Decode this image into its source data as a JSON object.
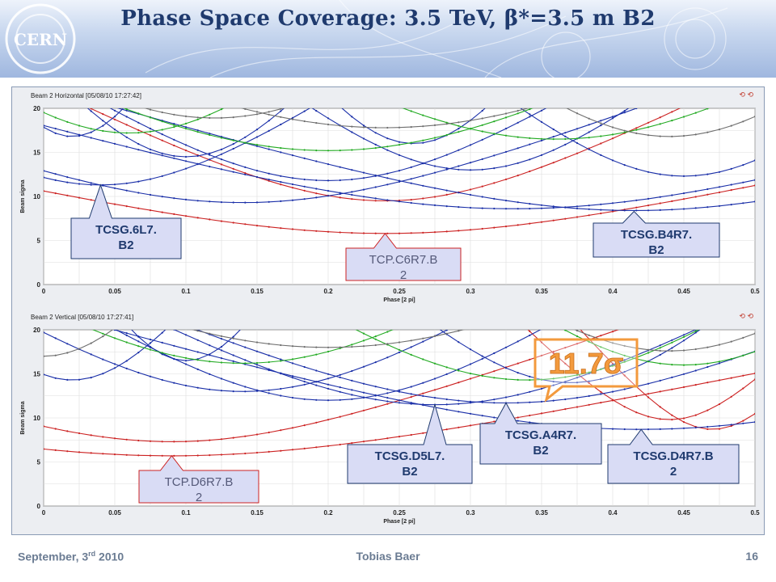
{
  "header": {
    "title": "Phase Space Coverage: 3.5 TeV, β*=3.5 m B2",
    "logo_text": "CERN"
  },
  "footer": {
    "date_prefix": "September, 3",
    "date_sup": "rd",
    "date_suffix": " 2010",
    "author": "Tobias Baer",
    "page": "16"
  },
  "highlight_label": "11.7σ",
  "colors": {
    "red": "#cc2222",
    "blue": "#1a2fa8",
    "green": "#22aa22",
    "gray": "#6e6e6e",
    "callout_fill": "#d9dcf5",
    "highlight": "#f39a3d"
  },
  "chart_data": [
    {
      "type": "line",
      "title": "Beam 2 Horizontal  [05/08/10 17:27:42]",
      "xlabel": "Phase [2 pi]",
      "ylabel": "Beam sigma",
      "xlim": [
        0,
        0.5
      ],
      "ylim": [
        0,
        20
      ],
      "xticks": [
        "0",
        "0.05",
        "0.1",
        "0.15",
        "0.2",
        "0.25",
        "0.3",
        "0.35",
        "0.4",
        "0.45",
        "0.5"
      ],
      "yticks": [
        "0",
        "5",
        "10",
        "15",
        "20"
      ],
      "grid": true,
      "annotations": [
        {
          "text_lines": [
            "TCSG.6L7.",
            "B2"
          ],
          "color": "blue",
          "x": 0.04,
          "y": 11.3
        },
        {
          "text_lines": [
            "TCP.C6R7.B",
            "2"
          ],
          "color": "red",
          "x": 0.24,
          "y": 5.8
        },
        {
          "text_lines": [
            "TCSG.B4R7.",
            "B2"
          ],
          "color": "blue",
          "x": 0.415,
          "y": 8.3
        }
      ],
      "curves": [
        {
          "color": "red",
          "center": 0.24,
          "min": 5.8,
          "width": 0.28
        },
        {
          "color": "red",
          "center": 0.24,
          "min": 9.5,
          "width": 0.2
        },
        {
          "color": "red",
          "center": -0.05,
          "min": 19,
          "width": 0.04
        },
        {
          "color": "blue",
          "center": 0.04,
          "min": 11.3,
          "width": 0.18
        },
        {
          "color": "blue",
          "center": 0.14,
          "min": 9.3,
          "width": 0.26
        },
        {
          "color": "blue",
          "center": 0.33,
          "min": 8.6,
          "width": 0.32
        },
        {
          "color": "blue",
          "center": 0.415,
          "min": 8.4,
          "width": 0.3
        },
        {
          "color": "blue",
          "center": 0.2,
          "min": 11.8,
          "width": 0.2
        },
        {
          "color": "blue",
          "center": 0.3,
          "min": 13.0,
          "width": 0.17
        },
        {
          "color": "blue",
          "center": 0.1,
          "min": 14.5,
          "width": 0.13
        },
        {
          "color": "blue",
          "center": 0.45,
          "min": 12.3,
          "width": 0.16
        },
        {
          "color": "blue",
          "center": 0.26,
          "min": 16.0,
          "width": 0.12
        },
        {
          "color": "blue",
          "center": 0.02,
          "min": 16.8,
          "width": 0.1
        },
        {
          "color": "green",
          "center": 0.2,
          "min": 15.2,
          "width": 0.3
        },
        {
          "color": "green",
          "center": 0.36,
          "min": 16.5,
          "width": 0.28
        },
        {
          "color": "green",
          "center": 0.06,
          "min": 17.2,
          "width": 0.2
        },
        {
          "color": "gray",
          "center": 0.24,
          "min": 17.8,
          "width": 0.35
        },
        {
          "color": "gray",
          "center": 0.44,
          "min": 16.8,
          "width": 0.2
        },
        {
          "color": "gray",
          "center": 0.12,
          "min": 18.9,
          "width": 0.25
        }
      ]
    },
    {
      "type": "line",
      "title": "Beam 2 Vertical  [05/08/10 17:27:41]",
      "xlabel": "Phase [2 pi]",
      "ylabel": "Beam sigma",
      "xlim": [
        0,
        0.5
      ],
      "ylim": [
        0,
        20
      ],
      "xticks": [
        "0",
        "0.05",
        "0.1",
        "0.15",
        "0.2",
        "0.25",
        "0.3",
        "0.35",
        "0.4",
        "0.45",
        "0.5"
      ],
      "yticks": [
        "0",
        "5",
        "10",
        "15",
        "20"
      ],
      "grid": true,
      "annotations": [
        {
          "text_lines": [
            "TCP.D6R7.B",
            "2"
          ],
          "color": "red",
          "x": 0.09,
          "y": 5.7
        },
        {
          "text_lines": [
            "TCSG.D5L7.",
            "B2"
          ],
          "color": "blue",
          "x": 0.275,
          "y": 11.5
        },
        {
          "text_lines": [
            "TCSG.A4R7.",
            "B2"
          ],
          "color": "blue",
          "x": 0.325,
          "y": 11.7
        },
        {
          "text_lines": [
            "TCSG.D4R7.B",
            "2"
          ],
          "color": "blue",
          "x": 0.42,
          "y": 8.7
        }
      ],
      "curves": [
        {
          "color": "red",
          "center": 0.09,
          "min": 5.7,
          "width": 0.3
        },
        {
          "color": "red",
          "center": 0.09,
          "min": 7.3,
          "width": 0.22
        },
        {
          "color": "red",
          "center": 0.44,
          "min": 9.8,
          "width": 0.1
        },
        {
          "color": "red",
          "center": 0.47,
          "min": 8.7,
          "width": 0.08
        },
        {
          "color": "blue",
          "center": 0.275,
          "min": 11.5,
          "width": 0.23
        },
        {
          "color": "blue",
          "center": 0.325,
          "min": 11.7,
          "width": 0.28
        },
        {
          "color": "blue",
          "center": 0.42,
          "min": 8.7,
          "width": 0.32
        },
        {
          "color": "blue",
          "center": 0.14,
          "min": 13.0,
          "width": 0.22
        },
        {
          "color": "blue",
          "center": 0.2,
          "min": 12.0,
          "width": 0.2
        },
        {
          "color": "blue",
          "center": 0.02,
          "min": 14.3,
          "width": 0.12
        },
        {
          "color": "blue",
          "center": 0.37,
          "min": 14.0,
          "width": 0.16
        },
        {
          "color": "blue",
          "center": 0.1,
          "min": 16.5,
          "width": 0.1
        },
        {
          "color": "green",
          "center": 0.14,
          "min": 16.2,
          "width": 0.26
        },
        {
          "color": "green",
          "center": 0.34,
          "min": 14.3,
          "width": 0.22
        },
        {
          "color": "green",
          "center": 0.45,
          "min": 16.0,
          "width": 0.2
        },
        {
          "color": "gray",
          "center": 0.2,
          "min": 18.0,
          "width": 0.35
        },
        {
          "color": "gray",
          "center": 0.44,
          "min": 17.6,
          "width": 0.22
        },
        {
          "color": "gray",
          "center": 0.0,
          "min": 17.0,
          "width": 0.14
        }
      ]
    }
  ]
}
